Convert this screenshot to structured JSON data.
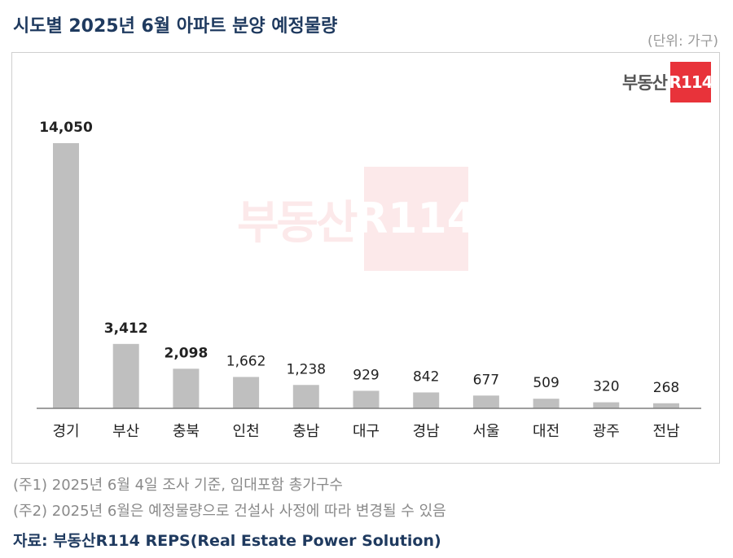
{
  "header": {
    "title": "시도별 2025년 6월 아파트 분양 예정물량",
    "unit": "(단위: 가구)"
  },
  "logo": {
    "text": "부동산",
    "box": "R114"
  },
  "watermark": {
    "text": "부동산",
    "box": "R114"
  },
  "chart_data": {
    "type": "bar",
    "categories": [
      "경기",
      "부산",
      "충북",
      "인천",
      "충남",
      "대구",
      "경남",
      "서울",
      "대전",
      "광주",
      "전남"
    ],
    "values": [
      14050,
      3412,
      2098,
      1662,
      1238,
      929,
      842,
      677,
      509,
      320,
      268
    ],
    "value_labels": [
      "14,050",
      "3,412",
      "2,098",
      "1,662",
      "1,238",
      "929",
      "842",
      "677",
      "509",
      "320",
      "268"
    ],
    "bold_labels": [
      true,
      true,
      true,
      false,
      false,
      false,
      false,
      false,
      false,
      false,
      false
    ],
    "title": "",
    "xlabel": "",
    "ylabel": "",
    "ylim": [
      0,
      14050
    ],
    "grid": false,
    "bar_color": "#bfbfbf"
  },
  "notes": [
    "(주1) 2025년 6월 4일 조사 기준, 임대포함 총가구수",
    "(주2) 2025년 6월은 예정물량으로 건설사 사정에 따라 변경될 수 있음"
  ],
  "source": "자료: 부동산R114 REPS(Real Estate Power Solution)"
}
